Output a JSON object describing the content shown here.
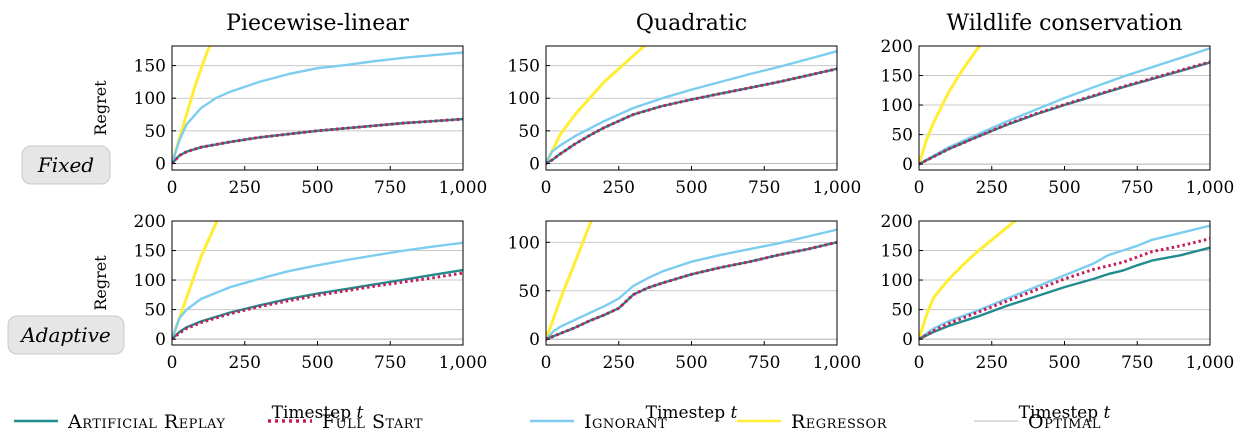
{
  "legend": [
    {
      "label": "Artificial Replay",
      "color": "#228b8d",
      "dash": "solid"
    },
    {
      "label": "Full Start",
      "color": "#c41e5a",
      "dash": "dotted"
    },
    {
      "label": "Ignorant",
      "color": "#7ccdf0",
      "dash": "solid"
    },
    {
      "label": "Regressor",
      "color": "#ffee33",
      "dash": "solid"
    },
    {
      "label": "Optimal",
      "color": "#bbbbbb",
      "dash": "solid"
    }
  ],
  "row_labels": [
    "Fixed",
    "Adaptive"
  ],
  "chart_data": [
    {
      "type": "line",
      "row": 0,
      "col": 0,
      "title": "Piecewise-linear",
      "ylabel": "Regret",
      "xlabel": "",
      "xlim": [
        0,
        1000
      ],
      "ylim": [
        -10,
        180
      ],
      "xticks": [
        0,
        250,
        500,
        750,
        1000
      ],
      "xticklabels": [
        "0",
        "250",
        "500",
        "750",
        "1,000"
      ],
      "yticks": [
        0,
        50,
        100,
        150
      ],
      "grid": true,
      "series": [
        {
          "name": "Regressor",
          "x": [
            0,
            40,
            80,
            120,
            140
          ],
          "y": [
            0,
            60,
            120,
            170,
            190
          ]
        },
        {
          "name": "Ignorant",
          "x": [
            0,
            25,
            50,
            100,
            150,
            200,
            300,
            400,
            500,
            600,
            700,
            800,
            900,
            1000
          ],
          "y": [
            0,
            35,
            60,
            85,
            100,
            110,
            125,
            137,
            146,
            151,
            157,
            162,
            166,
            170
          ]
        },
        {
          "name": "Artificial Replay",
          "x": [
            0,
            25,
            50,
            100,
            200,
            300,
            400,
            500,
            600,
            700,
            800,
            900,
            1000
          ],
          "y": [
            0,
            12,
            18,
            25,
            33,
            40,
            45,
            50,
            54,
            58,
            62,
            65,
            68
          ]
        },
        {
          "name": "Full Start",
          "x": [
            0,
            25,
            50,
            100,
            200,
            300,
            400,
            500,
            600,
            700,
            800,
            900,
            1000
          ],
          "y": [
            0,
            12,
            18,
            25,
            33,
            40,
            45,
            50,
            54,
            58,
            62,
            65,
            68
          ]
        },
        {
          "name": "Optimal",
          "x": [
            0,
            1000
          ],
          "y": [
            0,
            0
          ]
        }
      ]
    },
    {
      "type": "line",
      "row": 0,
      "col": 1,
      "title": "Quadratic",
      "ylabel": "",
      "xlabel": "",
      "xlim": [
        0,
        1000
      ],
      "ylim": [
        -10,
        180
      ],
      "xticks": [
        0,
        250,
        500,
        750,
        1000
      ],
      "xticklabels": [
        "0",
        "250",
        "500",
        "750",
        "1,000"
      ],
      "yticks": [
        0,
        50,
        100,
        150
      ],
      "grid": true,
      "series": [
        {
          "name": "Regressor",
          "x": [
            0,
            50,
            100,
            150,
            200,
            250,
            300,
            350
          ],
          "y": [
            0,
            45,
            75,
            100,
            125,
            145,
            165,
            185
          ]
        },
        {
          "name": "Ignorant",
          "x": [
            0,
            20,
            50,
            100,
            200,
            300,
            400,
            500,
            600,
            700,
            800,
            900,
            1000
          ],
          "y": [
            0,
            18,
            28,
            42,
            65,
            85,
            100,
            113,
            125,
            137,
            148,
            160,
            172
          ]
        },
        {
          "name": "Artificial Replay",
          "x": [
            0,
            20,
            50,
            100,
            150,
            200,
            300,
            400,
            500,
            600,
            700,
            800,
            900,
            1000
          ],
          "y": [
            0,
            5,
            15,
            30,
            43,
            55,
            75,
            88,
            98,
            107,
            116,
            125,
            135,
            145
          ]
        },
        {
          "name": "Full Start",
          "x": [
            0,
            20,
            50,
            100,
            150,
            200,
            300,
            400,
            500,
            600,
            700,
            800,
            900,
            1000
          ],
          "y": [
            0,
            5,
            15,
            30,
            43,
            55,
            75,
            88,
            98,
            107,
            116,
            125,
            135,
            145
          ]
        },
        {
          "name": "Optimal",
          "x": [
            0,
            1000
          ],
          "y": [
            0,
            0
          ]
        }
      ]
    },
    {
      "type": "line",
      "row": 0,
      "col": 2,
      "title": "Wildlife conservation",
      "ylabel": "",
      "xlabel": "",
      "xlim": [
        0,
        1000
      ],
      "ylim": [
        -10,
        200
      ],
      "xticks": [
        0,
        250,
        500,
        750,
        1000
      ],
      "xticklabels": [
        "0",
        "250",
        "500",
        "750",
        "1,000"
      ],
      "yticks": [
        0,
        50,
        100,
        150,
        200
      ],
      "grid": true,
      "series": [
        {
          "name": "Regressor",
          "x": [
            0,
            25,
            50,
            100,
            150,
            200,
            225
          ],
          "y": [
            0,
            40,
            70,
            120,
            160,
            195,
            210
          ]
        },
        {
          "name": "Ignorant",
          "x": [
            0,
            100,
            200,
            300,
            400,
            500,
            600,
            700,
            800,
            900,
            1000
          ],
          "y": [
            0,
            28,
            50,
            72,
            92,
            112,
            130,
            148,
            164,
            180,
            196
          ]
        },
        {
          "name": "Artificial Replay",
          "x": [
            0,
            100,
            200,
            300,
            400,
            500,
            600,
            700,
            800,
            900,
            1000
          ],
          "y": [
            0,
            25,
            46,
            66,
            84,
            100,
            115,
            130,
            144,
            158,
            172
          ]
        },
        {
          "name": "Full Start",
          "x": [
            0,
            100,
            200,
            300,
            400,
            500,
            600,
            700,
            800,
            900,
            1000
          ],
          "y": [
            0,
            25,
            46,
            67,
            85,
            101,
            116,
            131,
            145,
            159,
            173
          ]
        },
        {
          "name": "Optimal",
          "x": [
            0,
            1000
          ],
          "y": [
            0,
            0
          ]
        }
      ]
    },
    {
      "type": "line",
      "row": 1,
      "col": 0,
      "title": "",
      "ylabel": "Regret",
      "xlabel": "Timestep t",
      "xlim": [
        0,
        1000
      ],
      "ylim": [
        -10,
        200
      ],
      "xticks": [
        0,
        250,
        500,
        750,
        1000
      ],
      "xticklabels": [
        "0",
        "250",
        "500",
        "750",
        "1,000"
      ],
      "yticks": [
        0,
        50,
        100,
        150,
        200
      ],
      "grid": true,
      "series": [
        {
          "name": "Regressor",
          "x": [
            0,
            50,
            100,
            150,
            170
          ],
          "y": [
            0,
            70,
            140,
            195,
            215
          ]
        },
        {
          "name": "Ignorant",
          "x": [
            0,
            25,
            50,
            100,
            200,
            300,
            400,
            500,
            600,
            700,
            800,
            900,
            1000
          ],
          "y": [
            0,
            35,
            50,
            68,
            88,
            102,
            115,
            125,
            134,
            142,
            150,
            157,
            163
          ]
        },
        {
          "name": "Artificial Replay",
          "x": [
            0,
            25,
            50,
            100,
            200,
            300,
            400,
            500,
            600,
            700,
            800,
            900,
            1000
          ],
          "y": [
            0,
            12,
            20,
            30,
            45,
            57,
            68,
            77,
            85,
            93,
            101,
            109,
            117
          ]
        },
        {
          "name": "Full Start",
          "x": [
            0,
            25,
            50,
            100,
            200,
            300,
            400,
            500,
            600,
            700,
            800,
            900,
            1000
          ],
          "y": [
            0,
            10,
            18,
            28,
            43,
            55,
            65,
            74,
            82,
            90,
            97,
            104,
            112
          ]
        },
        {
          "name": "Optimal",
          "x": [
            0,
            1000
          ],
          "y": [
            0,
            0
          ]
        }
      ]
    },
    {
      "type": "line",
      "row": 1,
      "col": 1,
      "title": "",
      "ylabel": "",
      "xlabel": "Timestep t",
      "xlim": [
        0,
        1000
      ],
      "ylim": [
        -6,
        122
      ],
      "xticks": [
        0,
        250,
        500,
        750,
        1000
      ],
      "xticklabels": [
        "0",
        "250",
        "500",
        "750",
        "1,000"
      ],
      "yticks": [
        0,
        50,
        100
      ],
      "grid": true,
      "series": [
        {
          "name": "Regressor",
          "x": [
            0,
            30,
            60,
            90,
            120,
            150,
            160
          ],
          "y": [
            0,
            25,
            50,
            72,
            95,
            118,
            125
          ]
        },
        {
          "name": "Ignorant",
          "x": [
            0,
            25,
            50,
            100,
            150,
            200,
            250,
            300,
            350,
            400,
            500,
            600,
            700,
            800,
            900,
            1000
          ],
          "y": [
            0,
            8,
            13,
            20,
            27,
            34,
            42,
            55,
            63,
            70,
            80,
            87,
            93,
            99,
            106,
            113
          ]
        },
        {
          "name": "Artificial Replay",
          "x": [
            0,
            25,
            50,
            100,
            150,
            200,
            250,
            300,
            350,
            400,
            500,
            600,
            700,
            800,
            900,
            1000
          ],
          "y": [
            0,
            3,
            6,
            12,
            19,
            25,
            32,
            46,
            53,
            58,
            67,
            74,
            80,
            87,
            93,
            100
          ]
        },
        {
          "name": "Full Start",
          "x": [
            0,
            25,
            50,
            100,
            150,
            200,
            250,
            300,
            350,
            400,
            500,
            600,
            700,
            800,
            900,
            1000
          ],
          "y": [
            0,
            3,
            6,
            12,
            19,
            25,
            32,
            46,
            53,
            58,
            67,
            74,
            80,
            87,
            93,
            100
          ]
        },
        {
          "name": "Optimal",
          "x": [
            0,
            1000
          ],
          "y": [
            0,
            0
          ]
        }
      ]
    },
    {
      "type": "line",
      "row": 1,
      "col": 2,
      "title": "",
      "ylabel": "",
      "xlabel": "Timestep t",
      "xlim": [
        0,
        1000
      ],
      "ylim": [
        -10,
        200
      ],
      "xticks": [
        0,
        250,
        500,
        750,
        1000
      ],
      "xticklabels": [
        "0",
        "250",
        "500",
        "750",
        "1,000"
      ],
      "yticks": [
        0,
        50,
        100,
        150,
        200
      ],
      "grid": true,
      "series": [
        {
          "name": "Regressor",
          "x": [
            0,
            25,
            50,
            100,
            150,
            200,
            250,
            300,
            330
          ],
          "y": [
            0,
            40,
            70,
            100,
            125,
            148,
            168,
            188,
            200
          ]
        },
        {
          "name": "Ignorant",
          "x": [
            0,
            50,
            100,
            200,
            300,
            400,
            500,
            600,
            650,
            700,
            750,
            800,
            900,
            1000
          ],
          "y": [
            0,
            18,
            30,
            48,
            68,
            88,
            108,
            128,
            142,
            150,
            158,
            168,
            180,
            192
          ]
        },
        {
          "name": "Artificial Replay",
          "x": [
            0,
            50,
            100,
            200,
            300,
            400,
            500,
            600,
            650,
            700,
            750,
            800,
            900,
            1000
          ],
          "y": [
            0,
            12,
            22,
            38,
            56,
            72,
            88,
            102,
            110,
            116,
            125,
            133,
            142,
            155
          ]
        },
        {
          "name": "Full Start",
          "x": [
            0,
            50,
            100,
            200,
            300,
            400,
            500,
            600,
            700,
            800,
            900,
            1000
          ],
          "y": [
            0,
            14,
            26,
            45,
            64,
            83,
            102,
            118,
            130,
            148,
            158,
            170
          ]
        },
        {
          "name": "Optimal",
          "x": [
            0,
            1000
          ],
          "y": [
            0,
            0
          ]
        }
      ]
    }
  ]
}
